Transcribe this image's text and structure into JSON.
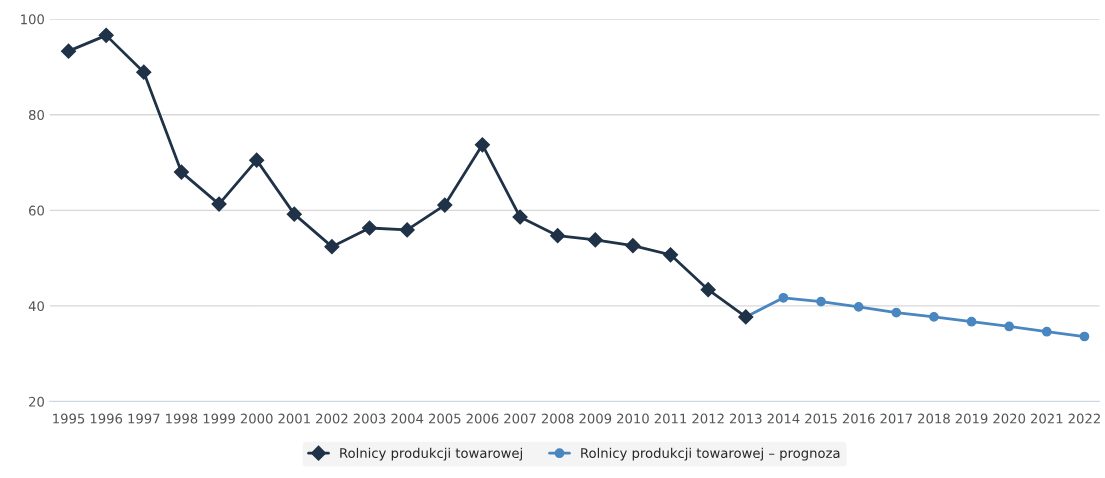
{
  "chart_data": {
    "type": "line",
    "categories": [
      "1995",
      "1996",
      "1997",
      "1998",
      "1999",
      "2000",
      "2001",
      "2002",
      "2003",
      "2004",
      "2005",
      "2006",
      "2007",
      "2008",
      "2009",
      "2010",
      "2011",
      "2012",
      "2013",
      "2014",
      "2015",
      "2016",
      "2017",
      "2018",
      "2019",
      "2020",
      "2021",
      "2022"
    ],
    "series": [
      {
        "name": "Rolnicy produkcji towarowej",
        "color": "#1f3247",
        "marker": "diamond",
        "values": [
          93.3,
          96.6,
          88.9,
          68.0,
          61.3,
          70.5,
          59.2,
          52.4,
          56.3,
          55.9,
          61.1,
          73.7,
          58.6,
          54.7,
          53.8,
          52.6,
          50.7,
          43.4,
          37.7,
          null,
          null,
          null,
          null,
          null,
          null,
          null,
          null,
          null
        ]
      },
      {
        "name": "Rolnicy produkcji towarowej – prognoza",
        "color": "#4a86c0",
        "marker": "circle",
        "values": [
          null,
          null,
          null,
          null,
          null,
          null,
          null,
          null,
          null,
          null,
          null,
          null,
          null,
          null,
          null,
          null,
          null,
          null,
          37.7,
          41.7,
          40.9,
          39.8,
          38.6,
          37.7,
          36.7,
          35.7,
          34.6,
          33.6
        ]
      }
    ],
    "ylim": [
      20,
      100
    ],
    "yticks": [
      20,
      40,
      60,
      80,
      100
    ],
    "grid": "y",
    "legend": "bottom"
  }
}
